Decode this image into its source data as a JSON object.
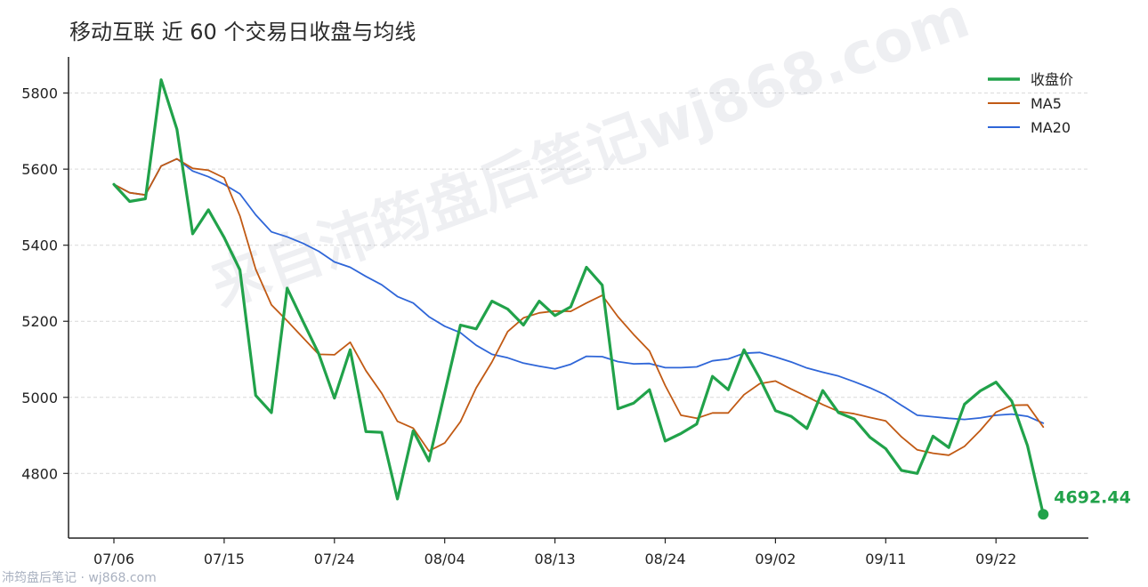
{
  "chart_data": {
    "type": "line",
    "title": "移动互联 近 60 个交易日收盘与均线",
    "x_tick_labels": [
      "07/06",
      "07/15",
      "07/24",
      "08/04",
      "08/13",
      "08/24",
      "09/02",
      "09/11",
      "09/22"
    ],
    "x_tick_index": [
      0,
      7,
      14,
      21,
      28,
      35,
      42,
      49,
      56
    ],
    "y_ticks": [
      4800,
      5000,
      5200,
      5400,
      5600,
      5800
    ],
    "ylim": [
      4630,
      5895
    ],
    "grid": "horizontal dashed",
    "legend_position": "top-right",
    "series": [
      {
        "name": "收盘价",
        "color": "#21a24a",
        "values": [
          5560,
          5515,
          5522,
          5835,
          5705,
          5430,
          5493,
          5420,
          5335,
          5005,
          4960,
          5287,
          5200,
          5115,
          4998,
          5125,
          4910,
          4908,
          4733,
          4912,
          4833,
          5012,
          5190,
          5180,
          5253,
          5232,
          5190,
          5253,
          5215,
          5238,
          5342,
          5295,
          4970,
          4985,
          5020,
          4885,
          4905,
          4930,
          5055,
          5020,
          5125,
          5050,
          4965,
          4950,
          4918,
          5018,
          4960,
          4943,
          4895,
          4865,
          4808,
          4800,
          4898,
          4868,
          4982,
          5017,
          5040,
          4990,
          4873,
          4692.44
        ]
      },
      {
        "name": "MA5",
        "color": "#c15a14",
        "values": [
          5560,
          5538,
          5532,
          5608,
          5627,
          5602,
          5597,
          5577,
          5477,
          5337,
          5243,
          5201,
          5157,
          5113,
          5112,
          5145,
          5070,
          5011,
          4937,
          4919,
          4859,
          4880,
          4936,
          5025,
          5093,
          5173,
          5209,
          5222,
          5227,
          5226,
          5248,
          5268,
          5212,
          5165,
          5122,
          5031,
          4953,
          4945,
          4959,
          4959,
          5007,
          5036,
          5043,
          5022,
          5002,
          4981,
          4963,
          4957,
          4947,
          4938,
          4896,
          4862,
          4853,
          4848,
          4871,
          4913,
          4961,
          4979,
          4980,
          4922
        ]
      },
      {
        "name": "MA20",
        "color": "#2f66d8",
        "values": [
          5560,
          5538,
          5532,
          5608,
          5627,
          5595,
          5580,
          5560,
          5535,
          5480,
          5435,
          5422,
          5405,
          5384,
          5356,
          5342,
          5318,
          5296,
          5265,
          5248,
          5212,
          5187,
          5170,
          5137,
          5113,
          5104,
          5090,
          5082,
          5075,
          5087,
          5108,
          5107,
          5094,
          5088,
          5089,
          5078,
          5078,
          5080,
          5096,
          5101,
          5116,
          5118,
          5106,
          5093,
          5077,
          5066,
          5056,
          5041,
          5025,
          5006,
          4979,
          4953,
          4949,
          4945,
          4942,
          4946,
          4953,
          4956,
          4950,
          4932
        ]
      }
    ],
    "last_value_label": "4692.44"
  },
  "watermarks": {
    "main": "来自沛筠盘后笔记wj868.com",
    "footer": "沛筠盘后笔记 · wj868.com"
  }
}
